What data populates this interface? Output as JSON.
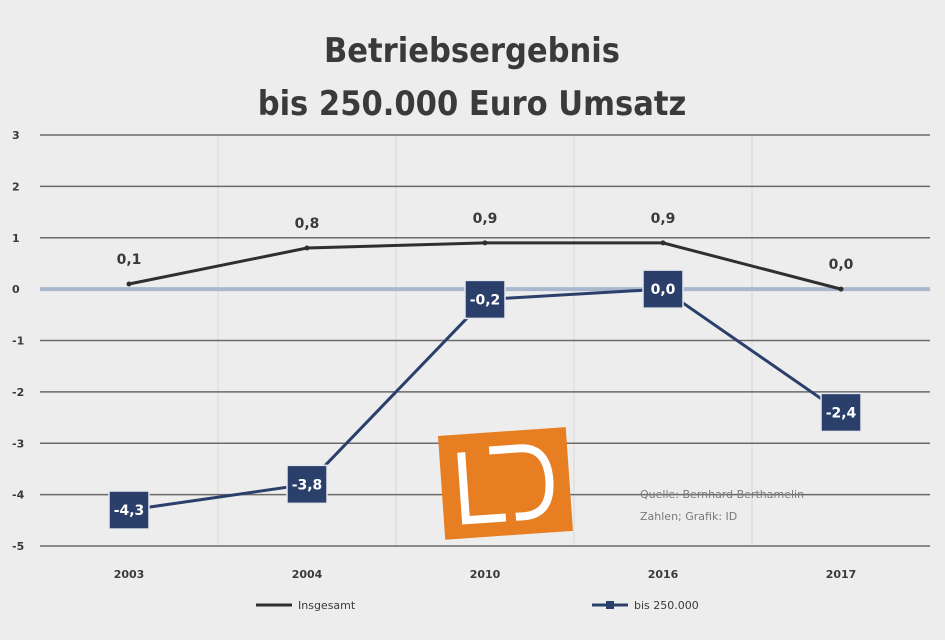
{
  "chart_data": {
    "type": "line",
    "title_line1": "Betriebsergebnis",
    "title_line2": "bis 250.000 Euro Umsatz",
    "categories": [
      "2003",
      "2004",
      "2010",
      "2016",
      "2017"
    ],
    "ylim": [
      -5,
      3
    ],
    "yticks": [
      3,
      2,
      1,
      0,
      -1,
      -2,
      -3,
      -4,
      -5
    ],
    "grid": true,
    "legend_position": "bottom",
    "series": [
      {
        "name": "Insgesamt",
        "color": "#2f2f2f",
        "values": [
          0.1,
          0.8,
          0.9,
          0.9,
          0.0
        ],
        "labels": [
          "0,1",
          "0,8",
          "0,9",
          "0,9",
          "0,0"
        ]
      },
      {
        "name": "bis 250.000",
        "color": "#2b3f6b",
        "values": [
          -4.3,
          -3.8,
          -0.2,
          0.0,
          -2.4
        ],
        "labels": [
          "-4,3",
          "-3,8",
          "-0,2",
          "0,0",
          "-2,4"
        ]
      }
    ],
    "source_line1": "Quelle: Bernhard Berthamelin",
    "source_line2": "Zahlen; Grafik: ID",
    "logo_text": "ID",
    "colors": {
      "zero_line": "#a9b7cf",
      "grid": "#6a6a6a",
      "logo": "#e87e22"
    }
  }
}
